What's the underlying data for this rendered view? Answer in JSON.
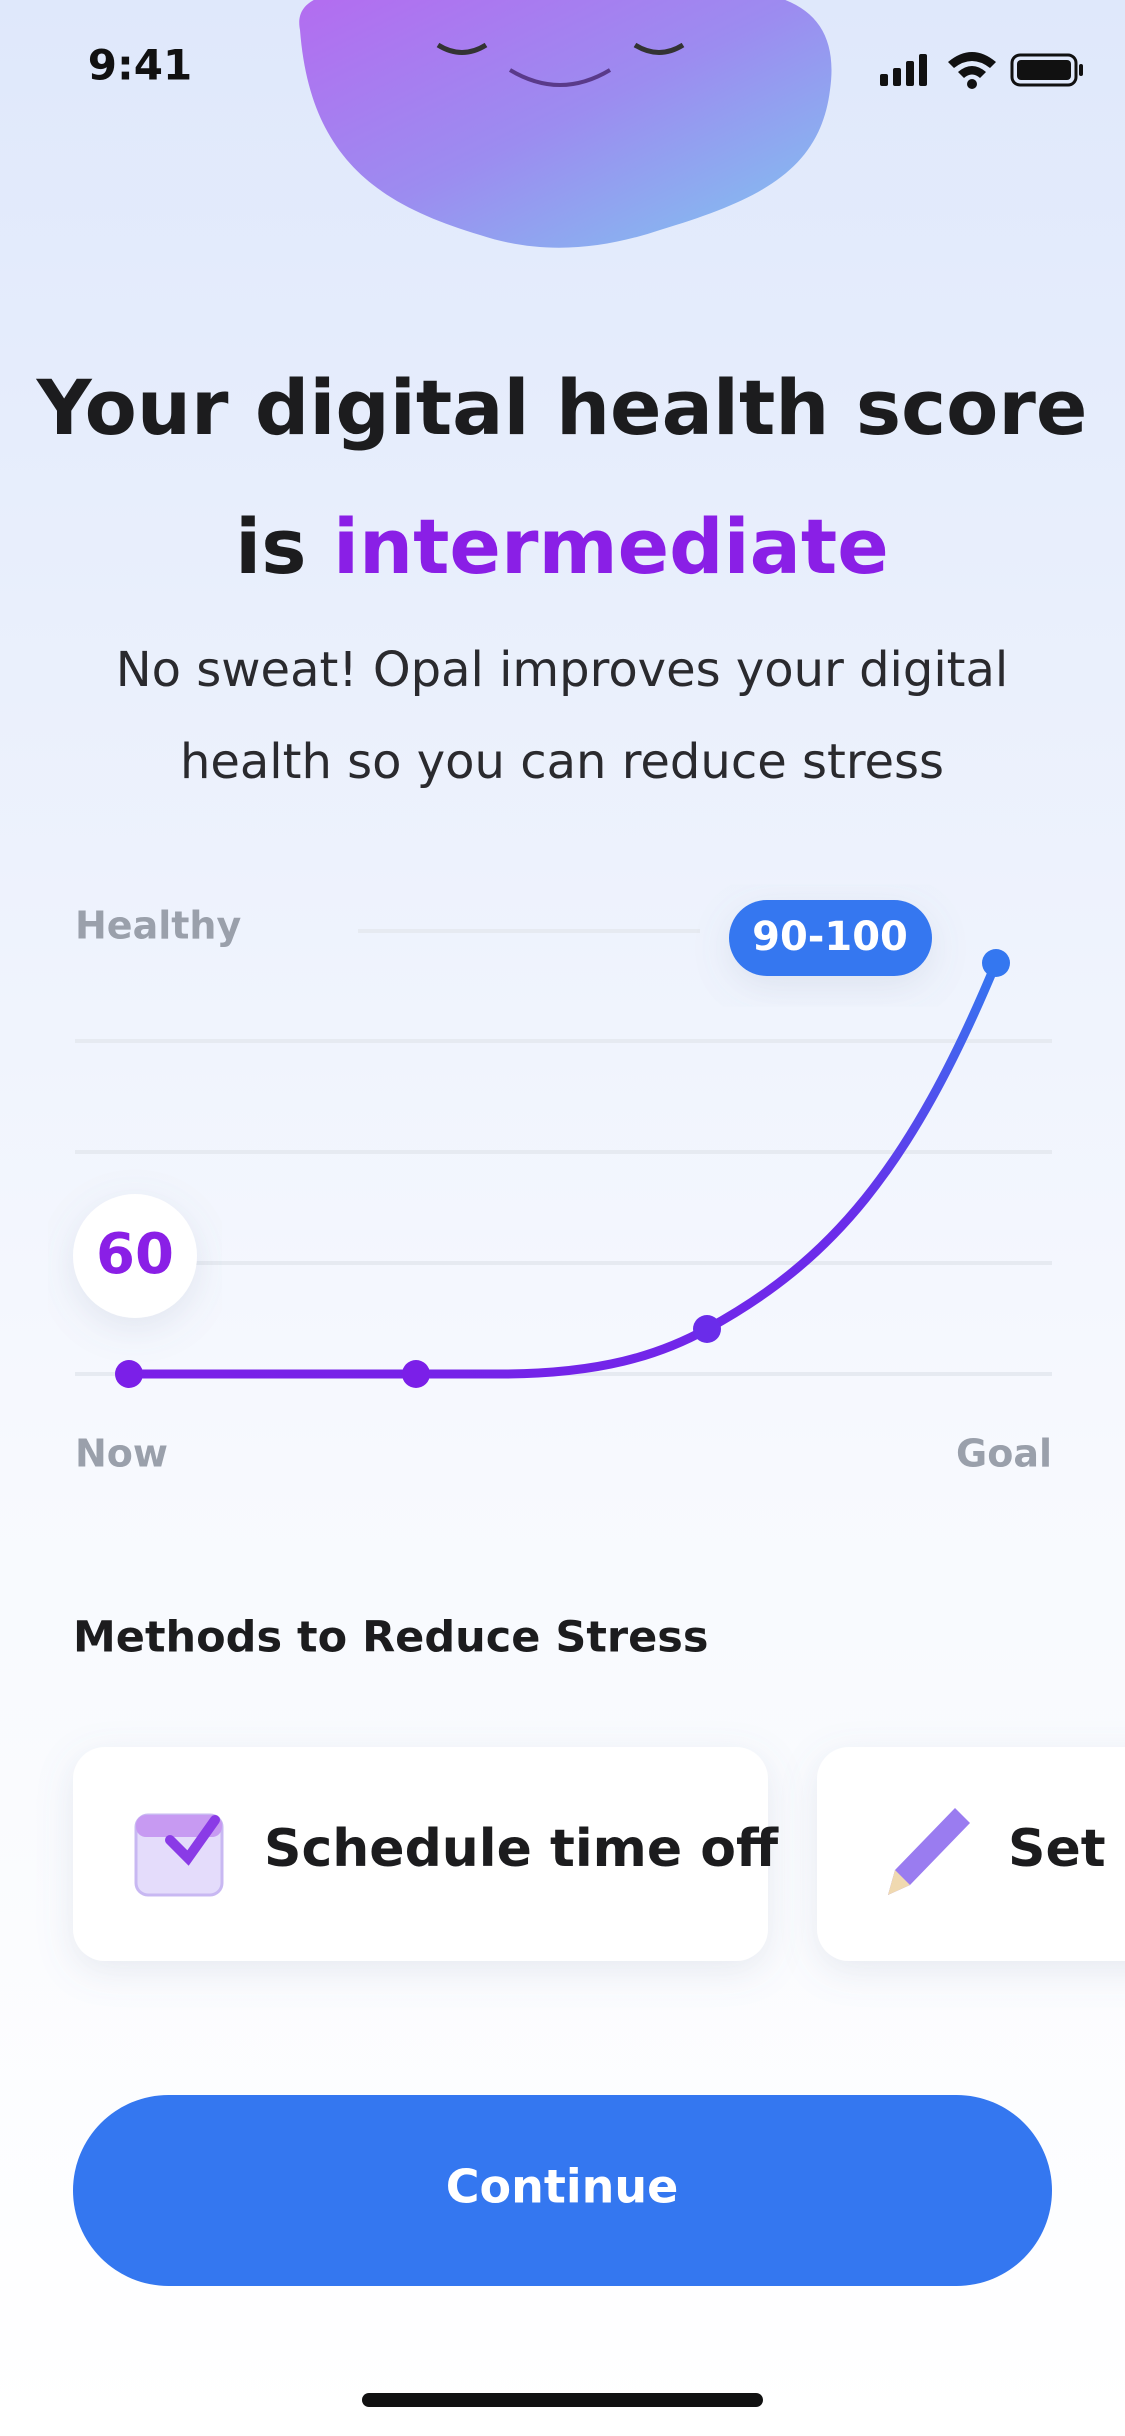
{
  "status_bar": {
    "time": "9:41"
  },
  "header": {
    "title_line1": "Your digital health score",
    "title_prefix": "is",
    "title_highlight": "intermediate",
    "subtitle_line1": "No sweat! Opal improves your digital",
    "subtitle_line2": "health so you can reduce stress"
  },
  "chart": {
    "top_label": "Healthy",
    "goal_badge": "90-100",
    "current_badge": "60",
    "start_label": "Now",
    "end_label": "Goal"
  },
  "methods": {
    "title": "Methods to Reduce Stress",
    "cards": [
      {
        "label": "Schedule time off"
      },
      {
        "label": "Set a"
      }
    ]
  },
  "button": {
    "label": "Continue"
  }
}
